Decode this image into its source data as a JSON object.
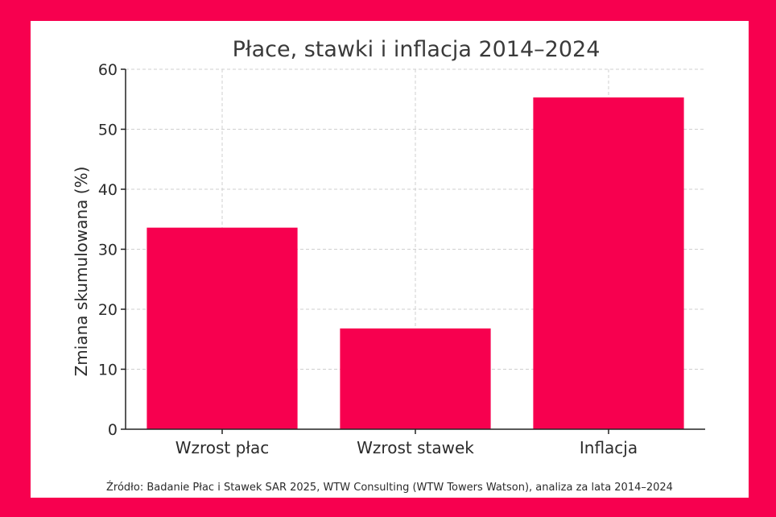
{
  "chart_data": {
    "type": "bar",
    "title": "Płace, stawki i inflacja 2014–2024",
    "xlabel": "",
    "ylabel": "Zmiana skumulowana (%)",
    "categories": [
      "Wzrost płac",
      "Wzrost stawek",
      "Inflacja"
    ],
    "values": [
      33.6,
      16.8,
      55.3
    ],
    "ylim": [
      0,
      60
    ],
    "yticks": [
      "0",
      "10",
      "20",
      "30",
      "40",
      "50",
      "60"
    ],
    "bar_color": "#f7004f",
    "grid": true
  },
  "footer": {
    "source": "Źródło: Badanie Płac i Stawek SAR 2025, WTW Consulting (WTW Towers Watson), analiza za lata 2014–2024"
  },
  "colors": {
    "background": "#f7004f",
    "panel": "#ffffff"
  }
}
